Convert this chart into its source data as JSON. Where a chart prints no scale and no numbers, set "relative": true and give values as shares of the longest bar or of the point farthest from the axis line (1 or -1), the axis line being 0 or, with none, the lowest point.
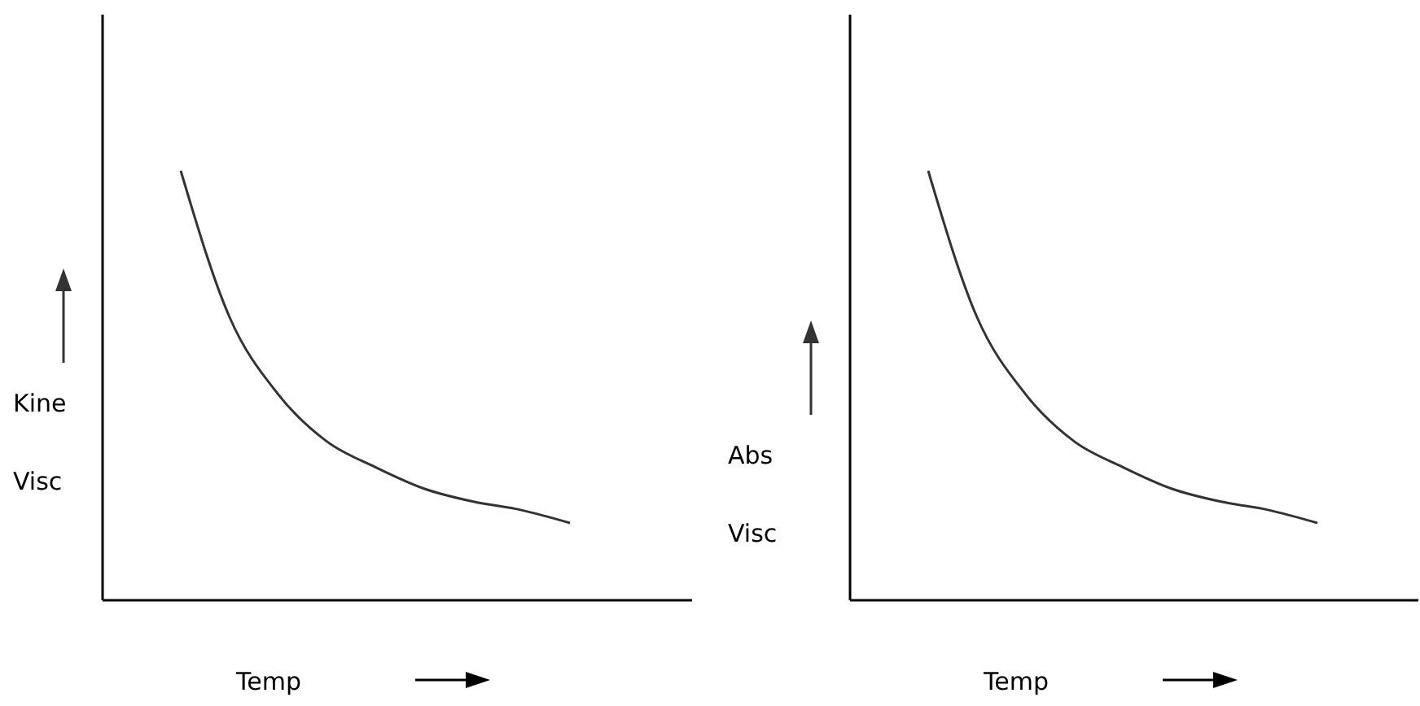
{
  "chart_data": [
    {
      "type": "line",
      "ylabel": "Kine Visc",
      "xlabel": "Temp",
      "relative": true,
      "line_style": "solid",
      "categories": [
        null,
        null,
        null,
        null,
        null,
        null,
        null,
        null,
        null
      ],
      "series": [
        {
          "color": "#333333",
          "values": [
            1,
            0.66,
            0.48,
            0.37,
            0.31,
            0.26,
            0.23,
            0.21,
            0.18
          ]
        }
      ]
    },
    {
      "type": "line",
      "ylabel": "Abs Visc",
      "xlabel": "Temp",
      "relative": true,
      "line_style": "solid",
      "categories": [
        null,
        null,
        null,
        null,
        null,
        null,
        null,
        null,
        null
      ],
      "series": [
        {
          "color": "#333333",
          "values": [
            1,
            0.66,
            0.48,
            0.37,
            0.31,
            0.26,
            0.23,
            0.21,
            0.18
          ]
        }
      ]
    }
  ]
}
